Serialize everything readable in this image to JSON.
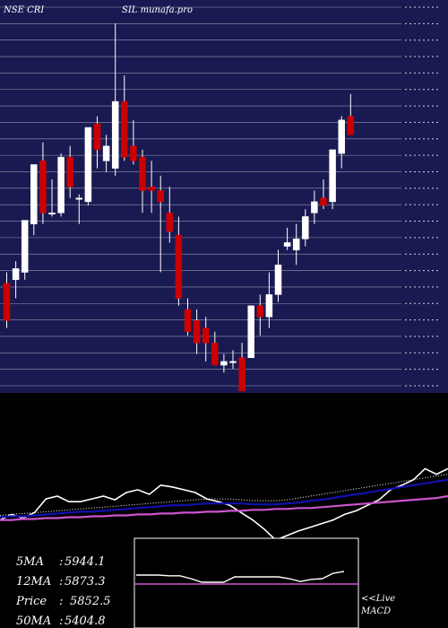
{
  "header": {
    "symbol_text": "NSE CRI",
    "brand_text": "SIL munafa.pro"
  },
  "colors": {
    "price_bg": "#1a1a52",
    "grid": "#ffffff",
    "up_candle": "#ffffff",
    "down_candle": "#cc0000",
    "ma_short": "#ffffff",
    "ma_mid": "#1010b0",
    "ma_long": "#cc55cc",
    "volume_line": "#ffffff"
  },
  "stats": [
    {
      "label": "5MA",
      "value": "5944.1"
    },
    {
      "label": "12MA",
      "value": "5873.3"
    },
    {
      "label": "Price",
      "value": "5852.5"
    },
    {
      "label": "50MA",
      "value": "5404.8"
    }
  ],
  "macd_label": {
    "line1": "<<Live",
    "line2": "MACD"
  },
  "chart_data": [
    {
      "type": "candlestick",
      "title": "",
      "ylim": [
        0,
        100
      ],
      "candles": [
        {
          "o": 29,
          "h": 32,
          "l": 17,
          "c": 19
        },
        {
          "o": 30,
          "h": 35,
          "l": 25,
          "c": 33
        },
        {
          "o": 32,
          "h": 46,
          "l": 30,
          "c": 46
        },
        {
          "o": 45,
          "h": 61,
          "l": 42,
          "c": 61
        },
        {
          "o": 62,
          "h": 67,
          "l": 45,
          "c": 48
        },
        {
          "o": 48,
          "h": 57,
          "l": 47,
          "c": 48
        },
        {
          "o": 48,
          "h": 64,
          "l": 47,
          "c": 63
        },
        {
          "o": 63,
          "h": 66,
          "l": 52,
          "c": 55
        },
        {
          "o": 52,
          "h": 53,
          "l": 45,
          "c": 52
        },
        {
          "o": 51,
          "h": 71,
          "l": 50,
          "c": 71
        },
        {
          "o": 72,
          "h": 74,
          "l": 60,
          "c": 65
        },
        {
          "o": 62,
          "h": 69,
          "l": 59,
          "c": 66
        },
        {
          "o": 60,
          "h": 99,
          "l": 58,
          "c": 78
        },
        {
          "o": 78,
          "h": 85,
          "l": 62,
          "c": 63
        },
        {
          "o": 66,
          "h": 73,
          "l": 61,
          "c": 62
        },
        {
          "o": 63,
          "h": 65,
          "l": 48,
          "c": 54
        },
        {
          "o": 55,
          "h": 62,
          "l": 48,
          "c": 54
        },
        {
          "o": 54,
          "h": 58,
          "l": 32,
          "c": 51
        },
        {
          "o": 48,
          "h": 55,
          "l": 40,
          "c": 43
        },
        {
          "o": 42,
          "h": 47,
          "l": 23,
          "c": 25
        },
        {
          "o": 22,
          "h": 25,
          "l": 15,
          "c": 16
        },
        {
          "o": 19,
          "h": 22,
          "l": 10,
          "c": 13
        },
        {
          "o": 17,
          "h": 20,
          "l": 8,
          "c": 13
        },
        {
          "o": 13,
          "h": 16,
          "l": 7,
          "c": 7
        },
        {
          "o": 7,
          "h": 10,
          "l": 5,
          "c": 8
        },
        {
          "o": 8,
          "h": 11,
          "l": 6,
          "c": 8
        },
        {
          "o": 9,
          "h": 13,
          "l": 0,
          "c": 0
        },
        {
          "o": 9,
          "h": 23,
          "l": 9,
          "c": 23
        },
        {
          "o": 23,
          "h": 26,
          "l": 15,
          "c": 20
        },
        {
          "o": 20,
          "h": 32,
          "l": 17,
          "c": 26
        },
        {
          "o": 26,
          "h": 38,
          "l": 24,
          "c": 34
        },
        {
          "o": 39,
          "h": 44,
          "l": 38,
          "c": 40
        },
        {
          "o": 38,
          "h": 45,
          "l": 34,
          "c": 41
        },
        {
          "o": 41,
          "h": 49,
          "l": 39,
          "c": 47
        },
        {
          "o": 48,
          "h": 54,
          "l": 45,
          "c": 51
        },
        {
          "o": 52,
          "h": 57,
          "l": 49,
          "c": 50
        },
        {
          "o": 51,
          "h": 65,
          "l": 49,
          "c": 65
        },
        {
          "o": 64,
          "h": 74,
          "l": 60,
          "c": 73
        },
        {
          "o": 74,
          "h": 80,
          "l": 69,
          "c": 69
        }
      ]
    },
    {
      "type": "line",
      "title": "",
      "ylim": [
        0,
        100
      ],
      "series": [
        {
          "values": [
            22,
            28,
            24,
            30,
            45,
            48,
            42,
            42,
            45,
            48,
            44,
            52,
            55,
            50,
            60,
            58,
            55,
            52,
            45,
            42,
            38,
            30,
            22,
            12,
            0,
            5,
            10,
            14,
            18,
            22,
            28,
            32,
            38,
            44,
            55,
            60,
            66,
            78,
            72,
            78
          ]
        },
        {
          "values": [
            27,
            28,
            29,
            30,
            31,
            32,
            33,
            34,
            35,
            36,
            37,
            38,
            39,
            40,
            41,
            42,
            43,
            44,
            45,
            45,
            45,
            44,
            43,
            43,
            43,
            44,
            46,
            48,
            50,
            52,
            54,
            56,
            58,
            60,
            62,
            64,
            66,
            68,
            70,
            72
          ]
        },
        {
          "values": [
            25,
            26,
            26,
            27,
            28,
            29,
            30,
            31,
            31,
            32,
            33,
            34,
            35,
            36,
            37,
            38,
            38,
            39,
            40,
            40,
            40,
            40,
            39,
            39,
            39,
            40,
            41,
            43,
            44,
            46,
            48,
            50,
            52,
            54,
            56,
            58,
            60,
            62,
            64,
            66
          ]
        },
        {
          "values": [
            22,
            22,
            23,
            23,
            24,
            24,
            25,
            25,
            26,
            26,
            27,
            27,
            28,
            28,
            29,
            29,
            30,
            30,
            31,
            31,
            32,
            32,
            33,
            33,
            34,
            34,
            35,
            35,
            36,
            37,
            38,
            39,
            40,
            41,
            42,
            43,
            44,
            45,
            46,
            48
          ]
        }
      ]
    },
    {
      "type": "line",
      "title": "",
      "ylim": [
        0,
        100
      ],
      "series": [
        {
          "values": [
            60,
            60,
            60,
            58,
            58,
            50,
            40,
            40,
            40,
            55,
            55,
            55,
            55,
            55,
            50,
            42,
            48,
            50,
            65,
            70
          ]
        }
      ]
    }
  ]
}
